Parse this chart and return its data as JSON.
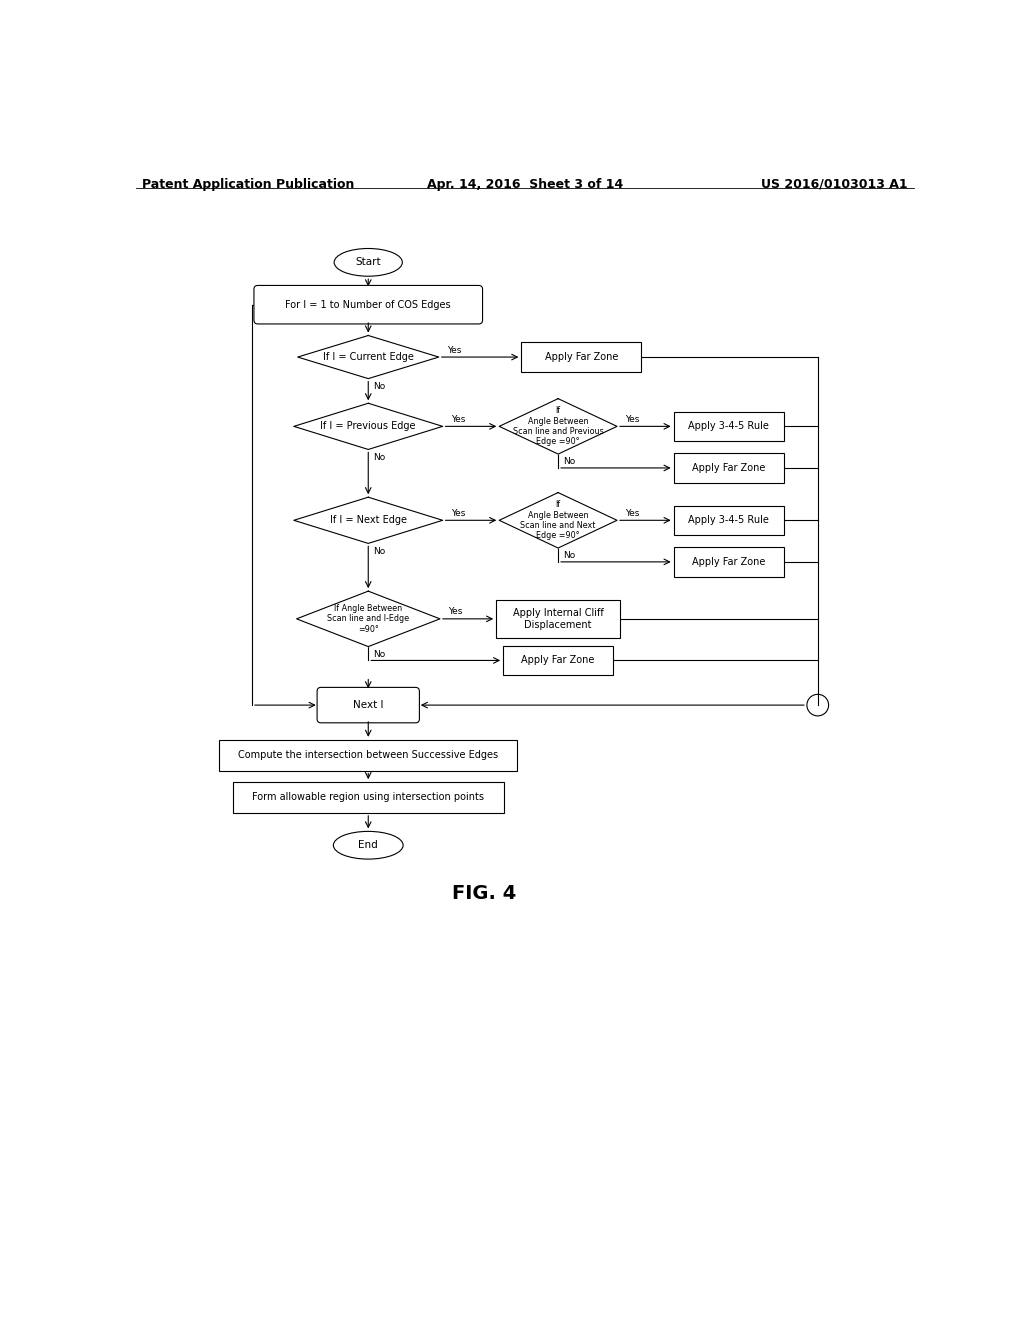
{
  "title_left": "Patent Application Publication",
  "title_center": "Apr. 14, 2016  Sheet 3 of 14",
  "title_right": "US 2016/0103013 A1",
  "fig_label": "FIG. 4",
  "bg_color": "#ffffff",
  "line_color": "#000000",
  "text_color": "#000000",
  "font_size_header": 9,
  "font_size_node": 7.5,
  "font_size_fig": 14
}
